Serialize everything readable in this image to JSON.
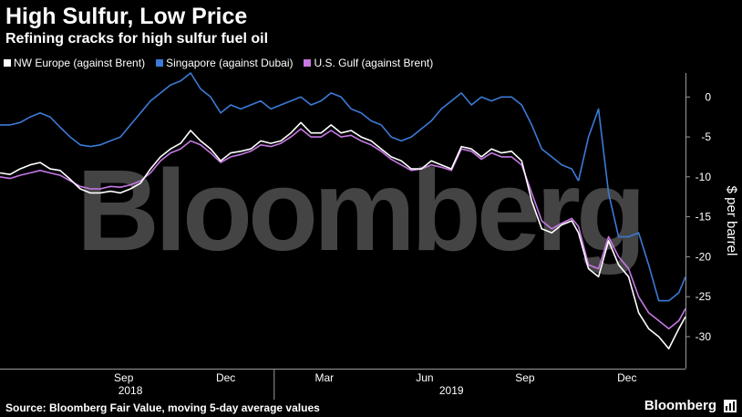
{
  "header": {
    "title": "High Sulfur, Low Price",
    "subtitle": "Refining cracks for high sulfur fuel oil"
  },
  "footer": {
    "source": "Source: Bloomberg Fair Value, moving 5-day average values",
    "brand": "Bloomberg",
    "brand_icon": "bloomberg-bars-icon"
  },
  "watermark": "Bloomberg",
  "chart_data": {
    "type": "line",
    "ylabel": "$ per barrel",
    "ylim": [
      -34,
      3
    ],
    "xlim": [
      0,
      17.3
    ],
    "y_ticks": [
      0,
      -5,
      -10,
      -15,
      -20,
      -25,
      -30
    ],
    "x_ticks": [
      {
        "label": "Sep",
        "x": 3.7
      },
      {
        "label": "Dec",
        "x": 6.75
      },
      {
        "label": "Mar",
        "x": 9.7
      },
      {
        "label": "Jun",
        "x": 12.7
      },
      {
        "label": "Sep",
        "x": 15.7
      },
      {
        "label": "Dec",
        "x": 18.75
      }
    ],
    "year_labels": [
      {
        "label": "2018",
        "x": 3.9
      },
      {
        "label": "2019",
        "x": 13.5
      }
    ],
    "grid": false,
    "legend_position": "top-left",
    "series": [
      {
        "name": "NW Europe (against Brent)",
        "color": "#ffffff",
        "points": [
          [
            0,
            -9.5
          ],
          [
            0.3,
            -9.7
          ],
          [
            0.6,
            -9.0
          ],
          [
            0.9,
            -8.5
          ],
          [
            1.2,
            -8.2
          ],
          [
            1.5,
            -9.0
          ],
          [
            1.8,
            -9.2
          ],
          [
            2.1,
            -10.3
          ],
          [
            2.4,
            -11.5
          ],
          [
            2.7,
            -12.0
          ],
          [
            3.0,
            -12.0
          ],
          [
            3.3,
            -11.8
          ],
          [
            3.6,
            -12.0
          ],
          [
            3.9,
            -11.5
          ],
          [
            4.2,
            -10.8
          ],
          [
            4.5,
            -9.0
          ],
          [
            4.8,
            -7.5
          ],
          [
            5.1,
            -6.5
          ],
          [
            5.4,
            -5.8
          ],
          [
            5.7,
            -4.2
          ],
          [
            6.0,
            -5.5
          ],
          [
            6.3,
            -6.5
          ],
          [
            6.6,
            -8.0
          ],
          [
            6.9,
            -7.0
          ],
          [
            7.2,
            -6.8
          ],
          [
            7.5,
            -6.5
          ],
          [
            7.8,
            -5.5
          ],
          [
            8.1,
            -5.8
          ],
          [
            8.4,
            -5.5
          ],
          [
            8.7,
            -4.5
          ],
          [
            9.0,
            -3.2
          ],
          [
            9.3,
            -4.5
          ],
          [
            9.6,
            -4.5
          ],
          [
            9.9,
            -3.5
          ],
          [
            10.2,
            -4.5
          ],
          [
            10.5,
            -4.2
          ],
          [
            10.8,
            -5.0
          ],
          [
            11.1,
            -5.5
          ],
          [
            11.4,
            -6.5
          ],
          [
            11.7,
            -7.5
          ],
          [
            12.0,
            -8.0
          ],
          [
            12.3,
            -9.0
          ],
          [
            12.6,
            -9.0
          ],
          [
            12.9,
            -8.0
          ],
          [
            13.2,
            -8.5
          ],
          [
            13.5,
            -9.0
          ],
          [
            13.8,
            -6.2
          ],
          [
            14.1,
            -6.5
          ],
          [
            14.4,
            -7.5
          ],
          [
            14.7,
            -6.5
          ],
          [
            15.0,
            -7.0
          ],
          [
            15.3,
            -6.8
          ],
          [
            15.6,
            -8.0
          ],
          [
            15.9,
            -13.0
          ],
          [
            16.2,
            -16.5
          ],
          [
            16.5,
            -17.0
          ],
          [
            16.8,
            -16.0
          ],
          [
            17.1,
            -15.5
          ],
          [
            17.3,
            -17.0
          ]
        ]
      },
      {
        "name": "Singapore (against Dubai)",
        "color": "#3c7ad6",
        "points": [
          [
            0,
            -3.5
          ],
          [
            0.3,
            -3.5
          ],
          [
            0.6,
            -3.2
          ],
          [
            0.9,
            -2.5
          ],
          [
            1.2,
            -2.0
          ],
          [
            1.5,
            -2.5
          ],
          [
            1.8,
            -3.8
          ],
          [
            2.1,
            -5.0
          ],
          [
            2.4,
            -6.0
          ],
          [
            2.7,
            -6.2
          ],
          [
            3.0,
            -6.0
          ],
          [
            3.3,
            -5.5
          ],
          [
            3.6,
            -5.0
          ],
          [
            3.9,
            -3.5
          ],
          [
            4.2,
            -2.0
          ],
          [
            4.5,
            -0.5
          ],
          [
            4.8,
            0.5
          ],
          [
            5.1,
            1.5
          ],
          [
            5.4,
            2.0
          ],
          [
            5.7,
            3.0
          ],
          [
            6.0,
            1.0
          ],
          [
            6.3,
            0.0
          ],
          [
            6.6,
            -2.0
          ],
          [
            6.9,
            -1.0
          ],
          [
            7.2,
            -1.5
          ],
          [
            7.5,
            -1.0
          ],
          [
            7.8,
            -0.5
          ],
          [
            8.1,
            -1.5
          ],
          [
            8.4,
            -1.0
          ],
          [
            8.7,
            -0.5
          ],
          [
            9.0,
            0.0
          ],
          [
            9.3,
            -1.0
          ],
          [
            9.6,
            -0.5
          ],
          [
            9.9,
            0.5
          ],
          [
            10.2,
            0.0
          ],
          [
            10.5,
            -1.5
          ],
          [
            10.8,
            -2.0
          ],
          [
            11.1,
            -3.0
          ],
          [
            11.4,
            -3.5
          ],
          [
            11.7,
            -5.0
          ],
          [
            12.0,
            -5.5
          ],
          [
            12.3,
            -5.0
          ],
          [
            12.6,
            -4.0
          ],
          [
            12.9,
            -3.0
          ],
          [
            13.2,
            -1.5
          ],
          [
            13.5,
            -0.5
          ],
          [
            13.8,
            0.5
          ],
          [
            14.1,
            -1.0
          ],
          [
            14.4,
            0.0
          ],
          [
            14.7,
            -0.5
          ],
          [
            15.0,
            0.0
          ],
          [
            15.3,
            0.0
          ],
          [
            15.6,
            -1.0
          ],
          [
            15.9,
            -3.5
          ],
          [
            16.2,
            -6.5
          ],
          [
            16.5,
            -7.5
          ],
          [
            16.8,
            -8.5
          ],
          [
            17.1,
            -9.0
          ],
          [
            17.3,
            -10.5
          ]
        ]
      },
      {
        "name": "U.S. Gulf (against Brent)",
        "color": "#c678e4",
        "points": [
          [
            0,
            -10.0
          ],
          [
            0.3,
            -10.2
          ],
          [
            0.6,
            -9.8
          ],
          [
            0.9,
            -9.5
          ],
          [
            1.2,
            -9.2
          ],
          [
            1.5,
            -9.5
          ],
          [
            1.8,
            -9.8
          ],
          [
            2.1,
            -10.5
          ],
          [
            2.4,
            -11.2
          ],
          [
            2.7,
            -11.5
          ],
          [
            3.0,
            -11.5
          ],
          [
            3.3,
            -11.2
          ],
          [
            3.6,
            -11.3
          ],
          [
            3.9,
            -11.0
          ],
          [
            4.2,
            -10.5
          ],
          [
            4.5,
            -9.5
          ],
          [
            4.8,
            -8.0
          ],
          [
            5.1,
            -7.0
          ],
          [
            5.4,
            -6.5
          ],
          [
            5.7,
            -5.5
          ],
          [
            6.0,
            -6.0
          ],
          [
            6.3,
            -7.0
          ],
          [
            6.6,
            -8.2
          ],
          [
            6.9,
            -7.5
          ],
          [
            7.2,
            -7.2
          ],
          [
            7.5,
            -6.8
          ],
          [
            7.8,
            -6.0
          ],
          [
            8.1,
            -6.2
          ],
          [
            8.4,
            -5.8
          ],
          [
            8.7,
            -5.0
          ],
          [
            9.0,
            -4.0
          ],
          [
            9.3,
            -5.0
          ],
          [
            9.6,
            -5.0
          ],
          [
            9.9,
            -4.2
          ],
          [
            10.2,
            -5.0
          ],
          [
            10.5,
            -4.8
          ],
          [
            10.8,
            -5.5
          ],
          [
            11.1,
            -6.0
          ],
          [
            11.4,
            -6.8
          ],
          [
            11.7,
            -7.8
          ],
          [
            12.0,
            -8.5
          ],
          [
            12.3,
            -9.2
          ],
          [
            12.6,
            -9.0
          ],
          [
            12.9,
            -8.5
          ],
          [
            13.2,
            -8.8
          ],
          [
            13.5,
            -9.2
          ],
          [
            13.8,
            -6.5
          ],
          [
            14.1,
            -6.8
          ],
          [
            14.4,
            -7.8
          ],
          [
            14.7,
            -7.0
          ],
          [
            15.0,
            -7.5
          ],
          [
            15.3,
            -7.5
          ],
          [
            15.6,
            -8.5
          ],
          [
            15.9,
            -12.0
          ],
          [
            16.2,
            -15.5
          ],
          [
            16.5,
            -16.5
          ],
          [
            16.8,
            -15.8
          ],
          [
            17.1,
            -15.2
          ],
          [
            17.3,
            -16.2
          ]
        ]
      }
    ]
  }
}
